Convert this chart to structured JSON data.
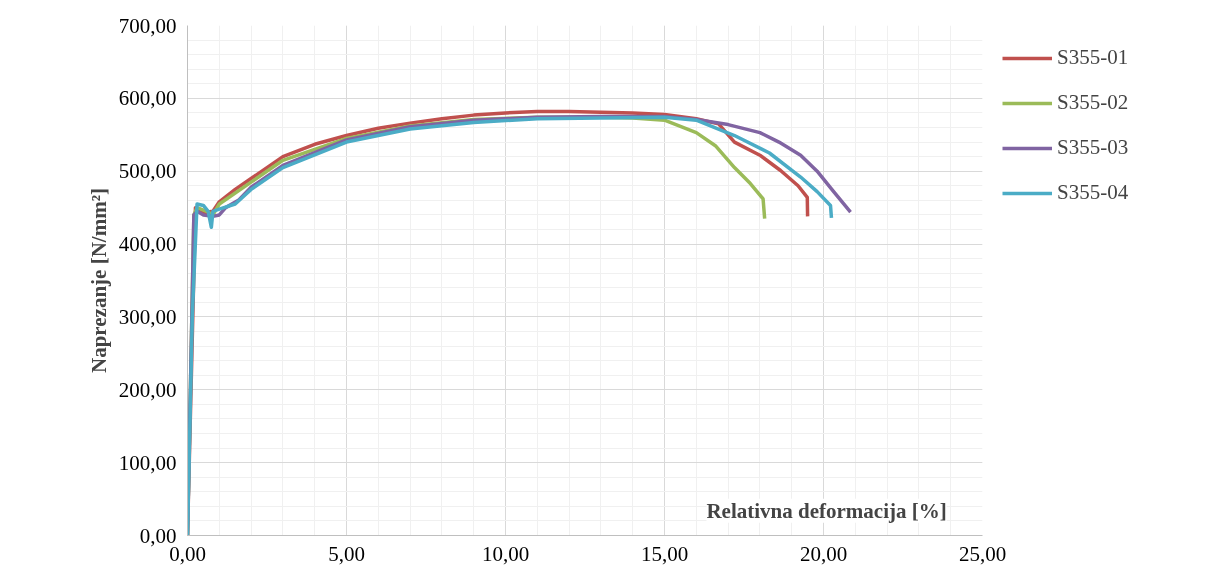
{
  "chart_data": {
    "type": "line",
    "xlabel": "Relativna deformacija [%]",
    "ylabel": "Naprezanje [N/mm²]",
    "xlim": [
      0,
      25
    ],
    "ylim": [
      0,
      700
    ],
    "xticks": [
      {
        "value": 0,
        "label": "0,00"
      },
      {
        "value": 5,
        "label": "5,00"
      },
      {
        "value": 10,
        "label": "10,00"
      },
      {
        "value": 15,
        "label": "15,00"
      },
      {
        "value": 20,
        "label": "20,00"
      },
      {
        "value": 25,
        "label": "25,00"
      }
    ],
    "yticks": [
      {
        "value": 0,
        "label": "0,00"
      },
      {
        "value": 100,
        "label": "100,00"
      },
      {
        "value": 200,
        "label": "200,00"
      },
      {
        "value": 300,
        "label": "300,00"
      },
      {
        "value": 400,
        "label": "400,00"
      },
      {
        "value": 500,
        "label": "500,00"
      },
      {
        "value": 600,
        "label": "600,00"
      },
      {
        "value": 700,
        "label": "700,00"
      }
    ],
    "grid": true,
    "legend": "right",
    "marker": "none",
    "line_style": "solid",
    "series": [
      {
        "name": "S355-01",
        "color": "#c0504d",
        "x": [
          0,
          0.25,
          0.5,
          0.8,
          1.0,
          1.5,
          2,
          3,
          4,
          5,
          6,
          7,
          8,
          9,
          10,
          11,
          12,
          13,
          14,
          15,
          16,
          16.7,
          17.2,
          18,
          18.65,
          19.2,
          19.49,
          19.5
        ],
        "values": [
          0,
          450,
          443,
          445,
          458,
          475,
          490,
          520,
          537,
          549,
          559,
          566,
          572,
          577,
          580,
          582,
          582,
          581,
          580,
          578,
          572,
          565,
          540,
          522,
          501,
          480,
          464,
          438
        ]
      },
      {
        "name": "S355-02",
        "color": "#9bbb59",
        "x": [
          0,
          0.2,
          0.3,
          0.6,
          0.8,
          1.0,
          2,
          3,
          5,
          7,
          9,
          11,
          13,
          14,
          15,
          16,
          16.6,
          17.2,
          17.7,
          18.1,
          18.15
        ],
        "values": [
          0,
          440,
          450,
          445,
          440,
          455,
          485,
          515,
          545,
          562,
          571,
          574,
          574,
          573,
          570,
          553,
          535,
          505,
          483,
          462,
          435
        ]
      },
      {
        "name": "S355-03",
        "color": "#8064a2",
        "x": [
          0,
          0.2,
          0.3,
          0.5,
          0.8,
          1.0,
          1.2,
          1.6,
          2,
          3,
          5,
          7,
          9,
          11,
          13,
          15,
          16,
          17,
          18,
          18.6,
          19.28,
          19.8,
          20.3,
          20.85
        ],
        "values": [
          0,
          440,
          445,
          440,
          438,
          440,
          450,
          460,
          478,
          508,
          543,
          561,
          570,
          574,
          575,
          575,
          571,
          564,
          553,
          540,
          522,
          500,
          473,
          444
        ]
      },
      {
        "name": "S355-04",
        "color": "#4bacc6",
        "x": [
          0,
          0.15,
          0.3,
          0.5,
          0.65,
          0.75,
          0.8,
          1.0,
          1.5,
          2,
          3,
          5,
          7,
          9,
          11,
          13,
          15,
          16,
          17.2,
          18.3,
          19.28,
          19.8,
          20.22,
          20.25
        ],
        "values": [
          0,
          300,
          455,
          453,
          445,
          423,
          445,
          448,
          455,
          475,
          505,
          540,
          558,
          567,
          572,
          573,
          574,
          570,
          549,
          525,
          492,
          472,
          453,
          436
        ]
      }
    ]
  }
}
